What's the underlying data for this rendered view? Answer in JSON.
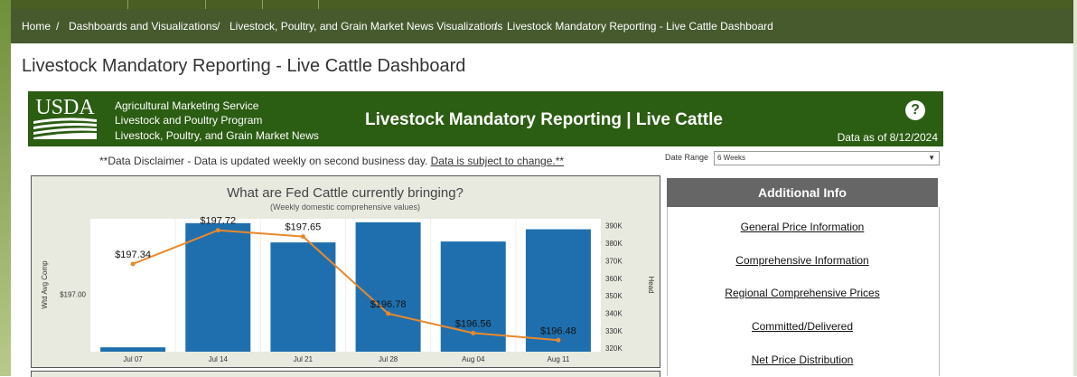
{
  "breadcrumb": [
    "Home",
    "Dashboards and Visualizations",
    "Livestock, Poultry, and Grain Market News Visualizations",
    "Livestock Mandatory Reporting - Live Cattle Dashboard"
  ],
  "breadcrumb_separator": "/",
  "page_title": "Livestock Mandatory Reporting - Live Cattle Dashboard",
  "banner": {
    "logo_text": "USDA",
    "agency_lines": [
      "Agricultural Marketing Service",
      "Livestock and Poultry Program",
      "Livestock, Poultry, and Grain Market News"
    ],
    "title": "Livestock Mandatory Reporting | Live Cattle",
    "help_label": "?",
    "data_as_of": "Data as of 8/12/2024",
    "bg_color": "#2b5d12"
  },
  "disclaimer": {
    "text": "**Data Disclaimer - Data is updated weekly on second business day.",
    "link": "Data is subject to change.**"
  },
  "date_range": {
    "label": "Date Range",
    "value": "6 Weeks"
  },
  "chart_data": {
    "type": "bar",
    "title": "What are Fed Cattle currently bringing?",
    "subtitle": "(Weekly domestic comprehensive values)",
    "categories": [
      "Jul 07",
      "Jul 14",
      "Jul 21",
      "Jul 28",
      "Aug 04",
      "Aug 11"
    ],
    "y_left_label": "Wtd Avg Comp",
    "y_left_ticks": [
      "$197.00"
    ],
    "y_left_range": [
      196.35,
      197.85
    ],
    "y_right_label": "Head",
    "y_right_ticks": [
      "390K",
      "380K",
      "370K",
      "360K",
      "350K",
      "340K",
      "330K",
      "320K"
    ],
    "y_right_range": [
      318000,
      394000
    ],
    "series": [
      {
        "type": "bar",
        "color": "#1f6fae",
        "values": [
          320500,
          391500,
          380500,
          392000,
          381000,
          388000
        ]
      },
      {
        "type": "line",
        "color": "#e8892b",
        "values": [
          197.34,
          197.72,
          197.65,
          196.78,
          196.56,
          196.48
        ],
        "labels": [
          "$197.34",
          "$197.72",
          "$197.65",
          "$196.78",
          "$196.56",
          "$196.48"
        ]
      }
    ]
  },
  "additional_info": {
    "title": "Additional Info",
    "links": [
      "General Price Information",
      "Comprehensive Information",
      "Regional Comprehensive Prices",
      "Committed/Delivered",
      "Net Price Distribution"
    ]
  }
}
